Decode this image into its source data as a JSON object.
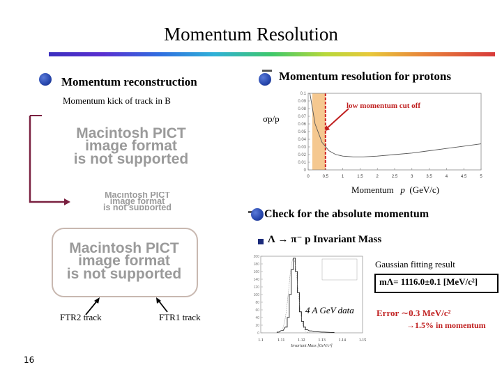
{
  "title": "Momentum Resolution",
  "left": {
    "heading": "Momentum reconstruction",
    "subheading": "Momentum kick of track in B",
    "pict_top": [
      "Macintosh PICT",
      "image format",
      "is not supported"
    ],
    "pict_mid": [
      "Macintosh PICT",
      "image format",
      "is not supported"
    ],
    "pict_bottom": [
      "Macintosh PICT",
      "image format",
      "is not supported"
    ],
    "ftr2_label": "FTR2 track",
    "ftr1_label": "FTR1 track",
    "page_number": "16"
  },
  "right": {
    "heading": "Momentum resolution for protons",
    "cutoff_label": "low momentum cut off",
    "ylabel": "σp/p",
    "xlabel_main": "Momentum",
    "xlabel_var": "p",
    "xlabel_unit": "(GeV/c)",
    "check_heading": "Check for the absolute momentum",
    "invariant_mass_title": "Λ → π⁻ p Invariant Mass",
    "fit_label": "Gaussian fitting result",
    "mass_result": "mΛ= 1116.0±0.1 [MeV/c²]",
    "data_label": "4 A GeV data",
    "error_label": "Error ∼0.3 MeV/c²",
    "percent_label": "→1.5% in momentum",
    "hist_xaxis_label": "Invariant Mass [GeV/c²]"
  },
  "chart_data": [
    {
      "type": "line",
      "title": "",
      "xlabel": "Momentum p (GeV/c)",
      "ylabel": "σp/p",
      "x_ticks": [
        "0",
        "0.5",
        "1",
        "1.5",
        "2",
        "2.5",
        "3",
        "3.5",
        "4",
        "4.5",
        "5"
      ],
      "y_ticks": [
        "0",
        "0.01",
        "0.02",
        "0.03",
        "0.04",
        "0.05",
        "0.06",
        "0.07",
        "0.08",
        "0.09",
        "0.1"
      ],
      "xlim": [
        0,
        5
      ],
      "ylim": [
        0,
        0.1
      ],
      "cutoff_x": 0.5,
      "series": [
        {
          "x": [
            0.05,
            0.2,
            0.4,
            0.6,
            0.8,
            1.0,
            1.3,
            1.6,
            2.0,
            2.5,
            3.0,
            3.5,
            4.0,
            4.5,
            5.0
          ],
          "y": [
            0.1,
            0.06,
            0.036,
            0.025,
            0.02,
            0.018,
            0.017,
            0.017,
            0.018,
            0.02,
            0.022,
            0.025,
            0.028,
            0.031,
            0.034
          ]
        }
      ]
    },
    {
      "type": "bar",
      "title": "",
      "xlabel": "Invariant Mass [GeV/c²]",
      "x_ticks": [
        "1.1",
        "1.11",
        "1.12",
        "1.13",
        "1.14",
        "1.15"
      ],
      "y_ticks": [
        "0",
        "20",
        "40",
        "60",
        "80",
        "100",
        "120",
        "140",
        "160",
        "180",
        "200"
      ],
      "xlim": [
        1.1,
        1.15
      ],
      "ylim": [
        0,
        200
      ],
      "bins": [
        1.108,
        1.11,
        1.112,
        1.113,
        1.114,
        1.115,
        1.116,
        1.117,
        1.118,
        1.119,
        1.12,
        1.121,
        1.122,
        1.124,
        1.126,
        1.13,
        1.135
      ],
      "values": [
        2,
        6,
        15,
        40,
        100,
        165,
        195,
        160,
        105,
        55,
        30,
        15,
        8,
        5,
        3,
        2,
        1
      ]
    }
  ]
}
